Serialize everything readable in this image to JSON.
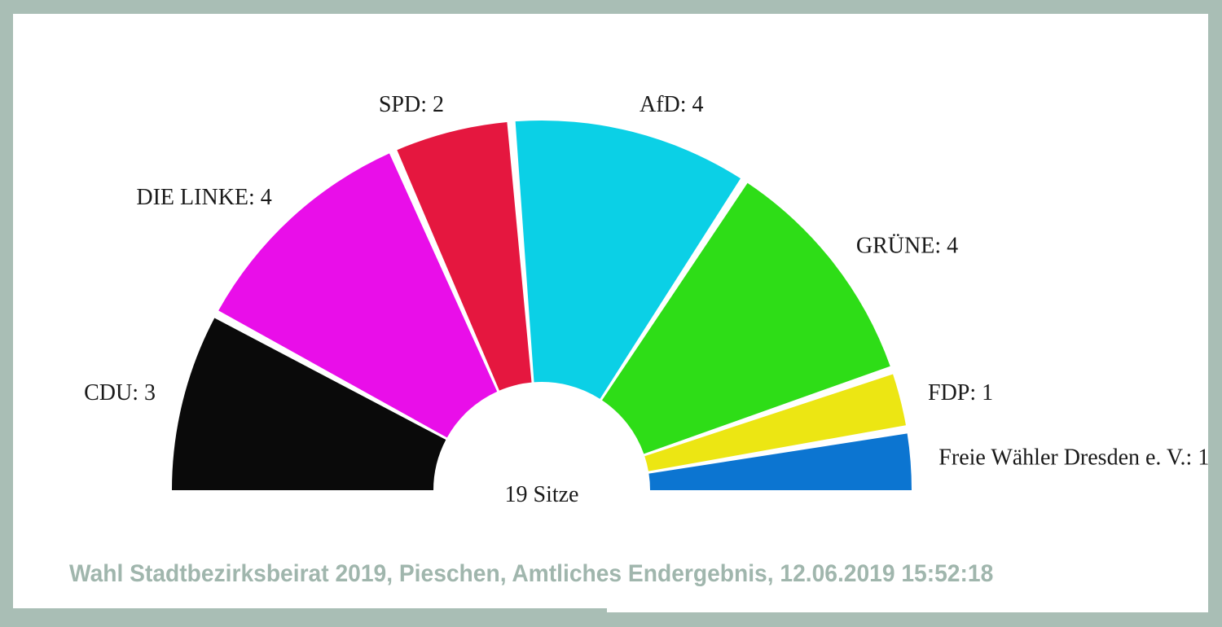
{
  "frame": {
    "border_color": "#a9beb5",
    "content_background": "#ffffff"
  },
  "chart_data": {
    "type": "pie",
    "variant": "semicircle-donut",
    "title": "",
    "center_label": "19 Sitze",
    "total_seats": 19,
    "start_angle_deg": 180,
    "end_angle_deg": 0,
    "label_color": "#1a1a1a",
    "series": [
      {
        "name": "CDU",
        "seats": 3,
        "color": "#0a0a0a",
        "label": "CDU: 3"
      },
      {
        "name": "DIE LINKE",
        "seats": 4,
        "color": "#e90ee9",
        "label": "DIE LINKE: 4"
      },
      {
        "name": "SPD",
        "seats": 2,
        "color": "#e5173f",
        "label": "SPD: 2"
      },
      {
        "name": "AfD",
        "seats": 4,
        "color": "#0bd0e6",
        "label": "AfD: 4"
      },
      {
        "name": "GRÜNE",
        "seats": 4,
        "color": "#2edd17",
        "label": "GRÜNE: 4"
      },
      {
        "name": "FDP",
        "seats": 1,
        "color": "#ece613",
        "label": "FDP: 1"
      },
      {
        "name": "Freie Wähler Dresden e. V.",
        "seats": 1,
        "color": "#0c75d1",
        "label": "Freie Wähler Dresden e. V.: 1"
      }
    ]
  },
  "caption": {
    "text": "Wahl Stadtbezirksbeirat 2019, Pieschen, Amtliches Endergebnis, 12.06.2019 15:52:18",
    "color": "#a0b6ad"
  }
}
